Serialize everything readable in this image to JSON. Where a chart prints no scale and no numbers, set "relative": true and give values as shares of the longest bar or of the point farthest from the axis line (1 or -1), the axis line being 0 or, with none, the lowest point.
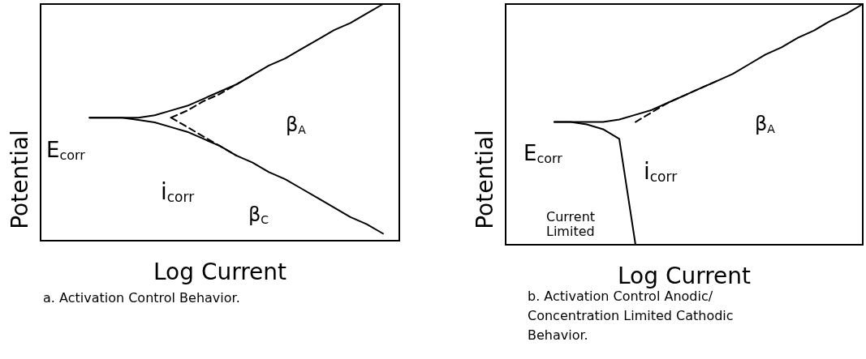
{
  "chart_data": [
    {
      "type": "line",
      "title": "a. Activation Control Behavior.",
      "xlabel": "Log Current",
      "ylabel": "Potential",
      "relative": true,
      "grid": false,
      "marker": "none",
      "categories": [
        null,
        null,
        null,
        null,
        null,
        null,
        null,
        null,
        null,
        null,
        null,
        null,
        null,
        null,
        null,
        null,
        null,
        null,
        null,
        null,
        null,
        null,
        null
      ],
      "series": [
        {
          "color": "#000000",
          "line_style": "solid",
          "values": [
            null,
            null,
            null,
            0.52,
            0.52,
            0.52,
            0.52,
            0.53,
            0.55,
            0.57,
            0.6,
            0.63,
            0.66,
            0.7,
            0.74,
            0.77,
            0.81,
            0.85,
            0.89,
            0.92,
            0.96,
            1,
            null
          ]
        },
        {
          "color": "#000000",
          "line_style": "solid",
          "values": [
            null,
            null,
            null,
            0.52,
            0.52,
            0.52,
            0.51,
            0.5,
            0.48,
            0.46,
            0.43,
            0.4,
            0.36,
            0.33,
            0.29,
            0.26,
            0.22,
            0.18,
            0.14,
            0.1,
            0.07,
            0.03,
            null
          ]
        },
        {
          "color": "#000000",
          "line_style": "dashed",
          "values": [
            null,
            null,
            null,
            null,
            null,
            null,
            null,
            null,
            0.52,
            0.55,
            0.59,
            0.62,
            0.66,
            0.7,
            null,
            null,
            null,
            null,
            null,
            null,
            null,
            null,
            null
          ]
        },
        {
          "color": "#000000",
          "line_style": "dashed",
          "values": [
            null,
            null,
            null,
            null,
            null,
            null,
            null,
            null,
            0.52,
            0.48,
            0.44,
            0.4,
            0.36,
            null,
            null,
            null,
            null,
            null,
            null,
            null,
            null,
            null,
            null
          ]
        }
      ],
      "annotations": [
        "E$_{corr}$",
        "i$_{corr}$",
        "β$_{A}$",
        "β$_{C}$"
      ]
    },
    {
      "type": "line",
      "title": "b. Activation Control Anodic/ Concentration Limited Cathodic Behavior.",
      "xlabel": "Log Current",
      "ylabel": "Potential",
      "relative": true,
      "grid": false,
      "marker": "none",
      "categories": [
        null,
        null,
        null,
        null,
        null,
        null,
        null,
        null,
        null,
        null,
        null,
        null,
        null,
        null,
        null,
        null,
        null,
        null,
        null,
        null,
        null,
        null,
        null
      ],
      "series": [
        {
          "color": "#000000",
          "line_style": "solid",
          "values": [
            null,
            null,
            null,
            0.51,
            0.51,
            0.51,
            0.51,
            0.52,
            0.54,
            0.56,
            0.59,
            0.62,
            0.65,
            0.68,
            0.71,
            0.75,
            0.79,
            0.82,
            0.86,
            0.89,
            0.93,
            0.96,
            1
          ]
        },
        {
          "color": "#000000",
          "line_style": "solid",
          "values": [
            null,
            null,
            null,
            0.51,
            0.51,
            0.5,
            0.48,
            0.44,
            0,
            null,
            null,
            null,
            null,
            null,
            null,
            null,
            null,
            null,
            null,
            null,
            null,
            null,
            null
          ]
        },
        {
          "color": "#000000",
          "line_style": "dashed",
          "values": [
            null,
            null,
            null,
            null,
            null,
            null,
            null,
            null,
            0.51,
            0.55,
            0.59,
            0.62,
            0.65,
            0.68,
            null,
            null,
            null,
            null,
            null,
            null,
            null,
            null,
            null
          ]
        }
      ],
      "annotations": [
        "E$_{corr}$",
        "i$_{corr}$",
        "β$_{A}$",
        "Current Limited"
      ]
    }
  ]
}
